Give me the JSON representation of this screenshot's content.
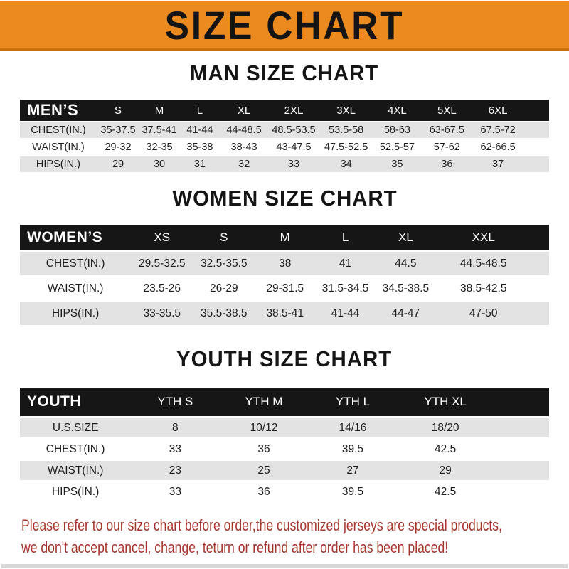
{
  "banner": {
    "title": "SIZE CHART"
  },
  "man": {
    "title": "MAN SIZE CHART",
    "table": {
      "corner": "MEN’S",
      "columns": [
        "S",
        "M",
        "L",
        "XL",
        "2XL",
        "3XL",
        "4XL",
        "5XL",
        "6XL"
      ],
      "rows": [
        {
          "label": "CHEST(IN.)",
          "values": [
            "35-37.5",
            "37.5-41",
            "41-44",
            "44-48.5",
            "48.5-53.5",
            "53.5-58",
            "58-63",
            "63-67.5",
            "67.5-72"
          ]
        },
        {
          "label": "WAIST(IN.)",
          "values": [
            "29-32",
            "32-35",
            "35-38",
            "38-43",
            "43-47.5",
            "47.5-52.5",
            "52.5-57",
            "57-62",
            "62-66.5"
          ]
        },
        {
          "label": "HIPS(IN.)",
          "values": [
            "29",
            "30",
            "31",
            "32",
            "33",
            "34",
            "35",
            "36",
            "37"
          ]
        }
      ]
    }
  },
  "women": {
    "title": "WOMEN SIZE CHART",
    "table": {
      "corner": "WOMEN’S",
      "columns": [
        "XS",
        "S",
        "M",
        "L",
        "XL",
        "XXL"
      ],
      "rows": [
        {
          "label": "CHEST(IN.)",
          "values": [
            "29.5-32.5",
            "32.5-35.5",
            "38",
            "41",
            "44.5",
            "44.5-48.5"
          ]
        },
        {
          "label": "WAIST(IN.)",
          "values": [
            "23.5-26",
            "26-29",
            "29-31.5",
            "31.5-34.5",
            "34.5-38.5",
            "38.5-42.5"
          ]
        },
        {
          "label": "HIPS(IN.)",
          "values": [
            "33-35.5",
            "35.5-38.5",
            "38.5-41",
            "41-44",
            "44-47",
            "47-50"
          ]
        }
      ]
    }
  },
  "youth": {
    "title": "YOUTH SIZE CHART",
    "table": {
      "corner": "YOUTH",
      "columns": [
        "YTH S",
        "YTH M",
        "YTH L",
        "YTH XL"
      ],
      "rows": [
        {
          "label": "U.S.SIZE",
          "values": [
            "8",
            "10/12",
            "14/16",
            "18/20"
          ]
        },
        {
          "label": "CHEST(IN.)",
          "values": [
            "33",
            "36",
            "39.5",
            "42.5"
          ]
        },
        {
          "label": "WAIST(IN.)",
          "values": [
            "23",
            "25",
            "27",
            "29"
          ]
        },
        {
          "label": "HIPS(IN.)",
          "values": [
            "33",
            "36",
            "39.5",
            "42.5"
          ]
        }
      ]
    }
  },
  "footer": {
    "line1": "Please refer to our size chart before order,the customized jerseys are special products,",
    "line2": "we don't accept cancel, change, teturn or refund after order has been placed!"
  },
  "colors": {
    "banner_bg": "#EA8A1F",
    "banner_edge": "#C9700F",
    "banner_text": "#141414",
    "header_bar_bg": "#161616",
    "header_bar_text": "#FFFFFF",
    "row_stripe": "#E3E3E3",
    "cell_text": "#1D1D1D",
    "footer_red": "#A5342C",
    "bottom_bar": "#D8D8D8"
  }
}
